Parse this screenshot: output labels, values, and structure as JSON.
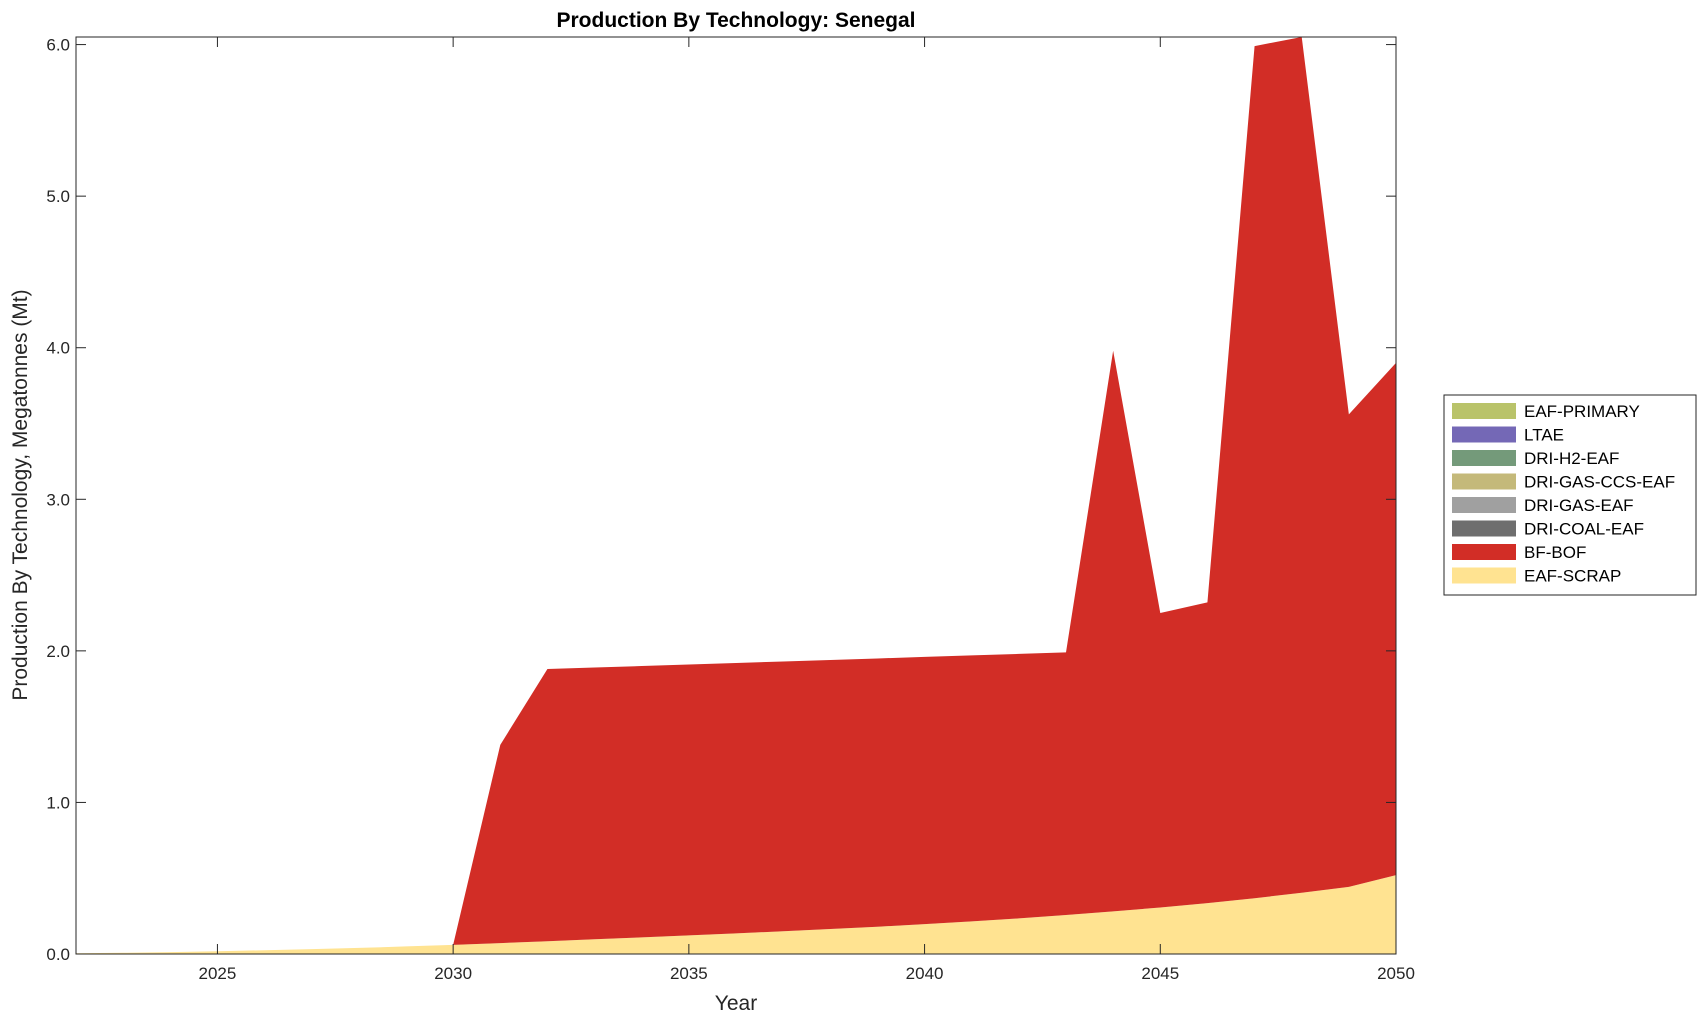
{
  "chart_data": {
    "type": "area",
    "stacked": true,
    "title": "Production By Technology: Senegal",
    "xlabel": "Year",
    "ylabel": "Production By Technology, Megatonnes (Mt)",
    "xlim": [
      2022,
      2050
    ],
    "ylim": [
      0,
      6.05
    ],
    "xticks": [
      2025,
      2030,
      2035,
      2040,
      2045,
      2050
    ],
    "xtick_labels": [
      "2025",
      "2030",
      "2035",
      "2040",
      "2045",
      "2050"
    ],
    "yticks": [
      0,
      1,
      2,
      3,
      4,
      5,
      6
    ],
    "ytick_labels": [
      "0.0",
      "1.0",
      "2.0",
      "3.0",
      "4.0",
      "5.0",
      "6.0"
    ],
    "grid": false,
    "legend_position": "right",
    "x": [
      2022,
      2023,
      2024,
      2025,
      2026,
      2027,
      2028,
      2029,
      2030,
      2031,
      2032,
      2033,
      2034,
      2035,
      2036,
      2037,
      2038,
      2039,
      2040,
      2041,
      2042,
      2043,
      2044,
      2045,
      2046,
      2047,
      2048,
      2049,
      2050
    ],
    "series": [
      {
        "name": "EAF-SCRAP",
        "color": "#ffe391",
        "values": [
          0.005,
          0.008,
          0.012,
          0.018,
          0.025,
          0.032,
          0.04,
          0.05,
          0.06,
          0.072,
          0.084,
          0.097,
          0.11,
          0.123,
          0.136,
          0.15,
          0.165,
          0.18,
          0.197,
          0.215,
          0.235,
          0.257,
          0.281,
          0.307,
          0.336,
          0.368,
          0.404,
          0.443,
          0.52
        ]
      },
      {
        "name": "BF-BOF",
        "color": "#d22d26",
        "values": [
          0,
          0,
          0,
          0,
          0,
          0,
          0,
          0,
          0,
          1.308,
          1.796,
          1.793,
          1.79,
          1.787,
          1.784,
          1.78,
          1.775,
          1.77,
          1.763,
          1.755,
          1.745,
          1.733,
          3.699,
          1.943,
          1.984,
          5.622,
          5.646,
          3.117,
          3.38
        ]
      },
      {
        "name": "DRI-COAL-EAF",
        "color": "#6e6e6e",
        "values": [
          0,
          0,
          0,
          0,
          0,
          0,
          0,
          0,
          0,
          0,
          0,
          0,
          0,
          0,
          0,
          0,
          0,
          0,
          0,
          0,
          0,
          0,
          0,
          0,
          0,
          0,
          0,
          0,
          0
        ]
      },
      {
        "name": "DRI-GAS-EAF",
        "color": "#a0a0a0",
        "values": [
          0,
          0,
          0,
          0,
          0,
          0,
          0,
          0,
          0,
          0,
          0,
          0,
          0,
          0,
          0,
          0,
          0,
          0,
          0,
          0,
          0,
          0,
          0,
          0,
          0,
          0,
          0,
          0,
          0
        ]
      },
      {
        "name": "DRI-GAS-CCS-EAF",
        "color": "#c4b97a",
        "values": [
          0,
          0,
          0,
          0,
          0,
          0,
          0,
          0,
          0,
          0,
          0,
          0,
          0,
          0,
          0,
          0,
          0,
          0,
          0,
          0,
          0,
          0,
          0,
          0,
          0,
          0,
          0,
          0,
          0
        ]
      },
      {
        "name": "DRI-H2-EAF",
        "color": "#749a7a",
        "values": [
          0,
          0,
          0,
          0,
          0,
          0,
          0,
          0,
          0,
          0,
          0,
          0,
          0,
          0,
          0,
          0,
          0,
          0,
          0,
          0,
          0,
          0,
          0,
          0,
          0,
          0,
          0,
          0,
          0
        ]
      },
      {
        "name": "LTAE",
        "color": "#7468b6",
        "values": [
          0,
          0,
          0,
          0,
          0,
          0,
          0,
          0,
          0,
          0,
          0,
          0,
          0,
          0,
          0,
          0,
          0,
          0,
          0,
          0,
          0,
          0,
          0,
          0,
          0,
          0,
          0,
          0,
          0
        ]
      },
      {
        "name": "EAF-PRIMARY",
        "color": "#b9c36a",
        "values": [
          0,
          0,
          0,
          0,
          0,
          0,
          0,
          0,
          0,
          0,
          0,
          0,
          0,
          0,
          0,
          0,
          0,
          0,
          0,
          0,
          0,
          0,
          0,
          0,
          0,
          0,
          0,
          0,
          0
        ]
      }
    ],
    "legend_order": [
      "EAF-PRIMARY",
      "LTAE",
      "DRI-H2-EAF",
      "DRI-GAS-CCS-EAF",
      "DRI-GAS-EAF",
      "DRI-COAL-EAF",
      "BF-BOF",
      "EAF-SCRAP"
    ]
  }
}
